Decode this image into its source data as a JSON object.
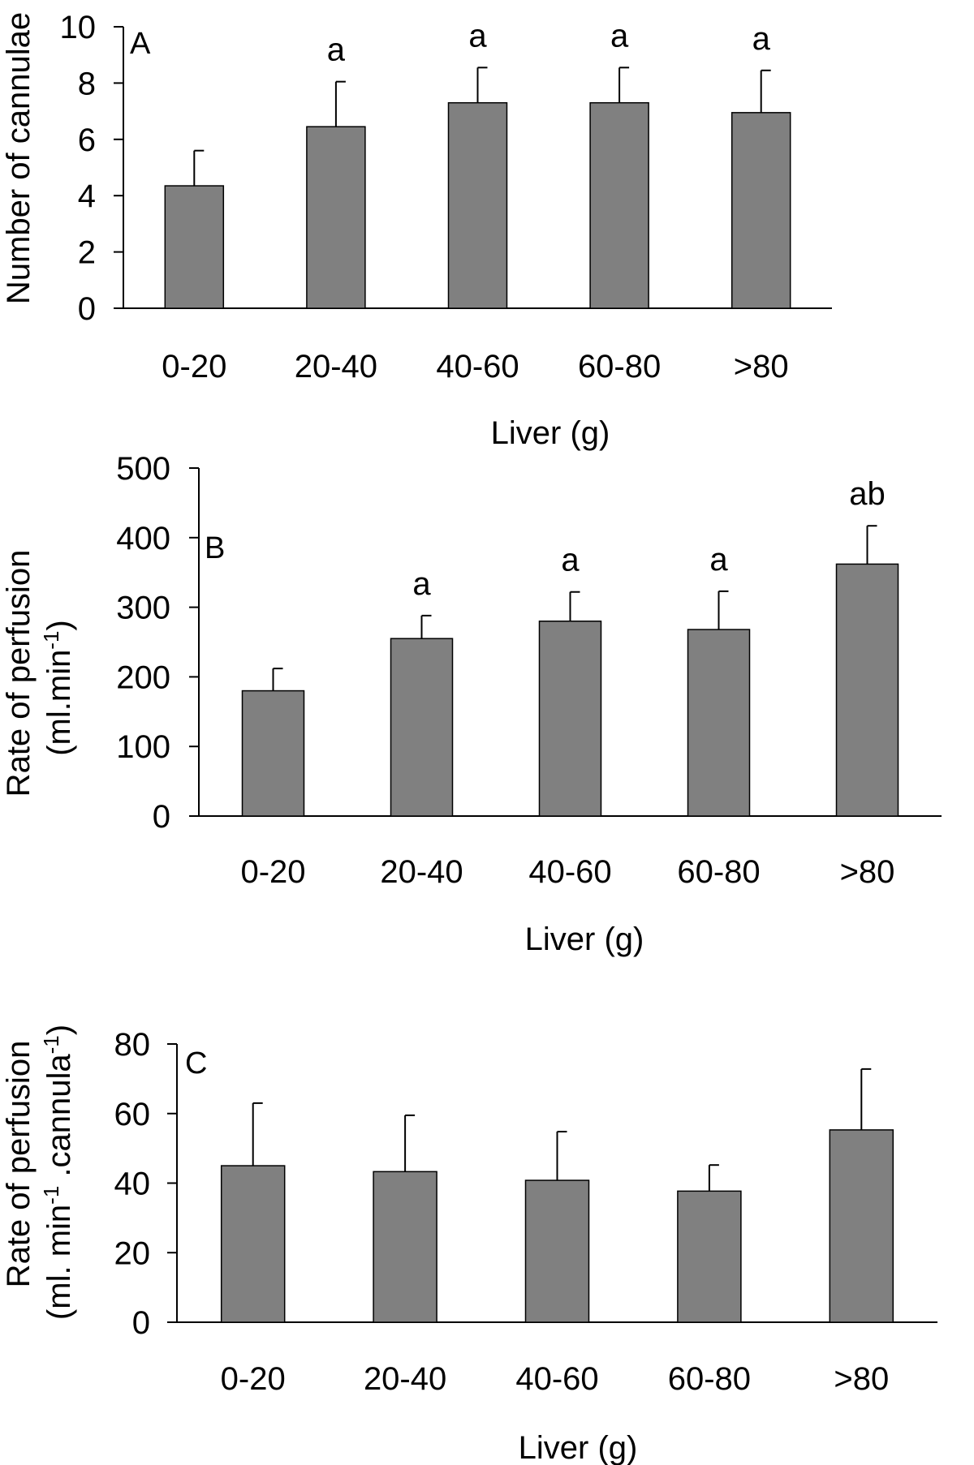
{
  "chart_data": [
    {
      "type": "bar",
      "panel": "A",
      "categories": [
        "0-20",
        "20-40",
        "40-60",
        "60-80",
        ">80"
      ],
      "values": [
        4.35,
        6.45,
        7.3,
        7.3,
        6.95
      ],
      "errors": [
        1.25,
        1.6,
        1.25,
        1.25,
        1.5
      ],
      "significance": [
        "",
        "a",
        "a",
        "a",
        "a"
      ],
      "ylabel": [
        "Number of cannulae"
      ],
      "xlabel": "Liver (g)",
      "ylim": [
        0,
        10
      ],
      "yticks": [
        0,
        2,
        4,
        6,
        8,
        10
      ],
      "bar_color": "#808080"
    },
    {
      "type": "bar",
      "panel": "B",
      "categories": [
        "0-20",
        "20-40",
        "40-60",
        "60-80",
        ">80"
      ],
      "values": [
        180,
        255,
        280,
        268,
        362
      ],
      "errors": [
        32,
        33,
        42,
        55,
        55
      ],
      "significance": [
        "",
        "a",
        "a",
        "a",
        "ab"
      ],
      "ylabel": [
        "Rate of perfusion",
        "(ml.min",
        "-1",
        ")"
      ],
      "xlabel": "Liver (g)",
      "ylim": [
        0,
        500
      ],
      "yticks": [
        0,
        100,
        200,
        300,
        400,
        500
      ],
      "bar_color": "#808080"
    },
    {
      "type": "bar",
      "panel": "C",
      "categories": [
        "0-20",
        "20-40",
        "40-60",
        "60-80",
        ">80"
      ],
      "values": [
        45,
        43.3,
        40.8,
        37.7,
        55.3
      ],
      "errors": [
        18,
        16.2,
        14,
        7.5,
        17.5
      ],
      "significance": [
        "",
        "",
        "",
        "",
        ""
      ],
      "ylabel": [
        "Rate of perfusion",
        "(ml. min",
        "-1",
        " .cannula",
        "-1",
        ")"
      ],
      "xlabel": "Liver (g)",
      "ylim": [
        0,
        80
      ],
      "yticks": [
        0,
        20,
        40,
        60,
        80
      ],
      "bar_color": "#808080"
    }
  ]
}
